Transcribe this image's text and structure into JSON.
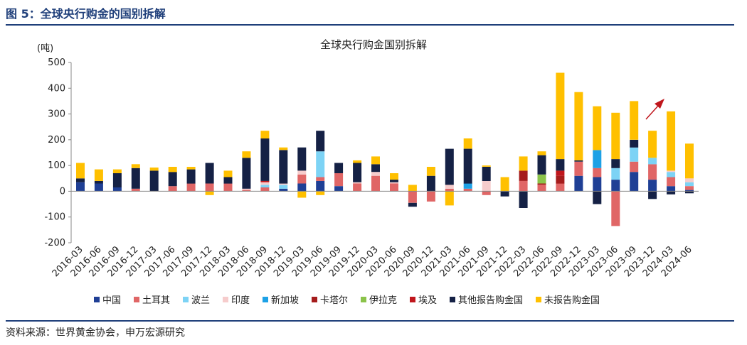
{
  "figure_title": "图 5：全球央行购金的国别拆解",
  "source": "资料来源：世界黄金协会，申万宏源研究",
  "chart_data": {
    "type": "bar",
    "stacked": true,
    "title": "全球央行购金国别拆解",
    "ylabel": "(吨)",
    "ylim": [
      -200,
      500
    ],
    "yticks": [
      -200,
      -100,
      0,
      100,
      200,
      300,
      400,
      500
    ],
    "legend_position": "bottom",
    "categories": [
      "2016-03",
      "2016-06",
      "2016-09",
      "2016-12",
      "2017-03",
      "2017-06",
      "2017-09",
      "2017-12",
      "2018-03",
      "2018-06",
      "2018-09",
      "2018-12",
      "2019-03",
      "2019-06",
      "2019-09",
      "2019-12",
      "2020-03",
      "2020-06",
      "2020-09",
      "2020-12",
      "2021-03",
      "2021-06",
      "2021-09",
      "2021-12",
      "2022-03",
      "2022-06",
      "2022-09",
      "2022-12",
      "2023-03",
      "2023-06",
      "2023-09",
      "2023-12",
      "2024-03",
      "2024-06"
    ],
    "series": [
      {
        "name": "中国",
        "color": "#1f3f95",
        "values": [
          35,
          30,
          15,
          0,
          0,
          0,
          0,
          0,
          0,
          0,
          0,
          10,
          30,
          40,
          20,
          0,
          0,
          0,
          0,
          0,
          0,
          0,
          0,
          0,
          0,
          0,
          0,
          60,
          55,
          45,
          75,
          45,
          20,
          5
        ]
      },
      {
        "name": "土耳其",
        "color": "#e06666",
        "values": [
          0,
          0,
          0,
          10,
          0,
          20,
          30,
          30,
          30,
          5,
          15,
          0,
          35,
          15,
          50,
          30,
          60,
          30,
          -45,
          -40,
          10,
          10,
          -15,
          0,
          40,
          25,
          30,
          55,
          35,
          -135,
          40,
          60,
          35,
          15
        ]
      },
      {
        "name": "波兰",
        "color": "#7dd3f5",
        "values": [
          0,
          0,
          0,
          0,
          0,
          0,
          0,
          0,
          0,
          0,
          10,
          15,
          0,
          100,
          0,
          0,
          0,
          0,
          0,
          0,
          0,
          0,
          0,
          0,
          0,
          0,
          0,
          0,
          0,
          45,
          55,
          25,
          20,
          15
        ]
      },
      {
        "name": "印度",
        "color": "#f6cccc",
        "values": [
          0,
          0,
          0,
          0,
          0,
          0,
          0,
          0,
          0,
          5,
          10,
          5,
          15,
          0,
          0,
          5,
          15,
          5,
          0,
          0,
          15,
          0,
          40,
          0,
          0,
          0,
          0,
          0,
          0,
          0,
          0,
          0,
          5,
          15
        ]
      },
      {
        "name": "新加坡",
        "color": "#1da1e6",
        "values": [
          0,
          0,
          0,
          0,
          0,
          0,
          0,
          0,
          0,
          0,
          0,
          0,
          0,
          0,
          0,
          0,
          0,
          0,
          0,
          0,
          0,
          20,
          0,
          0,
          0,
          0,
          0,
          0,
          70,
          0,
          0,
          0,
          0,
          0
        ]
      },
      {
        "name": "卡塔尔",
        "color": "#a51c1c",
        "values": [
          0,
          0,
          0,
          0,
          0,
          0,
          0,
          0,
          0,
          0,
          0,
          0,
          0,
          0,
          0,
          0,
          0,
          0,
          0,
          0,
          0,
          0,
          0,
          0,
          40,
          5,
          30,
          0,
          0,
          0,
          0,
          0,
          0,
          0
        ]
      },
      {
        "name": "伊拉克",
        "color": "#8bc34a",
        "values": [
          0,
          0,
          0,
          0,
          0,
          0,
          0,
          0,
          0,
          0,
          0,
          0,
          0,
          0,
          0,
          0,
          0,
          0,
          0,
          0,
          0,
          0,
          0,
          0,
          0,
          35,
          0,
          0,
          0,
          0,
          0,
          0,
          0,
          0
        ]
      },
      {
        "name": "埃及",
        "color": "#c0161c",
        "values": [
          0,
          0,
          0,
          0,
          0,
          0,
          0,
          0,
          0,
          0,
          5,
          0,
          0,
          0,
          0,
          0,
          0,
          0,
          0,
          0,
          0,
          0,
          0,
          0,
          0,
          0,
          20,
          0,
          0,
          0,
          0,
          0,
          0,
          0
        ]
      },
      {
        "name": "其他报告购金国",
        "color": "#152145",
        "values": [
          15,
          10,
          55,
          80,
          80,
          55,
          55,
          80,
          25,
          120,
          165,
          130,
          90,
          80,
          40,
          75,
          30,
          10,
          -15,
          60,
          140,
          135,
          55,
          -20,
          -65,
          75,
          45,
          5,
          -50,
          35,
          30,
          -30,
          -12,
          -8
        ]
      },
      {
        "name": "未报告购金国",
        "color": "#ffc000",
        "values": [
          60,
          45,
          15,
          15,
          12,
          20,
          10,
          -15,
          25,
          25,
          30,
          10,
          -25,
          -15,
          0,
          10,
          30,
          25,
          25,
          35,
          -55,
          40,
          5,
          55,
          55,
          15,
          335,
          265,
          170,
          180,
          150,
          105,
          230,
          135
        ]
      }
    ]
  }
}
